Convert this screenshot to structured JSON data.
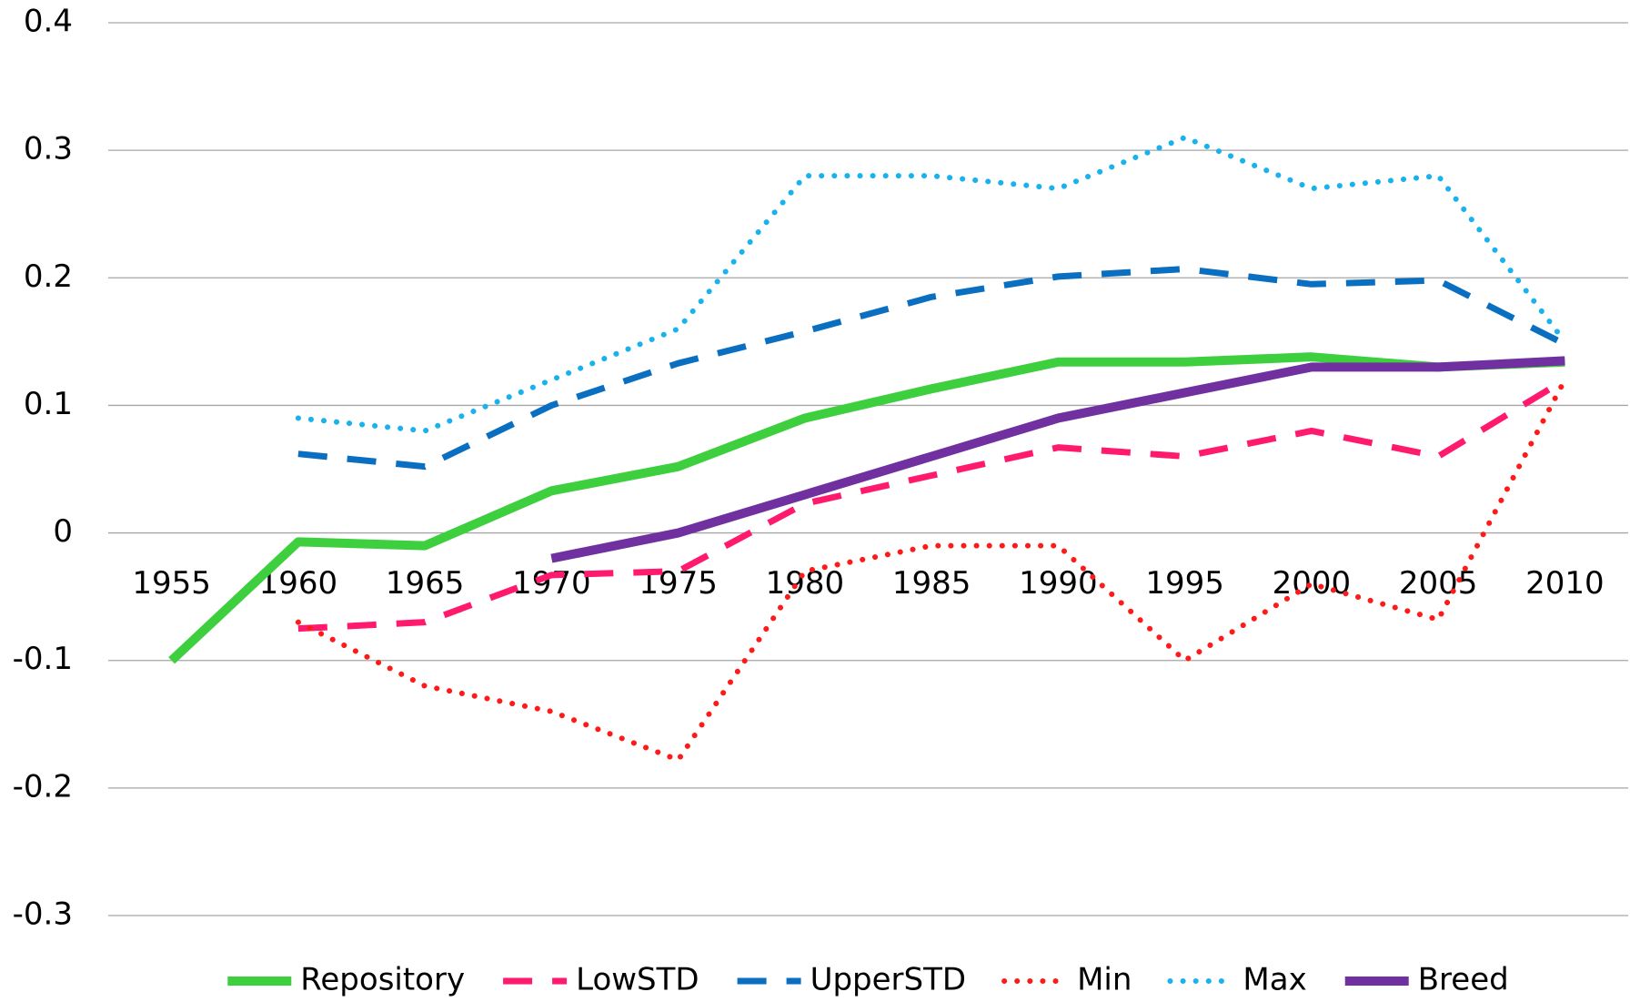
{
  "chart_data": {
    "type": "line",
    "categories": [
      "1955",
      "1960",
      "1965",
      "1970",
      "1975",
      "1980",
      "1985",
      "1990",
      "1995",
      "2000",
      "2005",
      "2010"
    ],
    "series": [
      {
        "name": "Repository",
        "color": "#3ecf3e",
        "style": "solid",
        "values": [
          -0.1,
          -0.007,
          -0.01,
          0.033,
          0.052,
          0.09,
          0.113,
          0.134,
          0.134,
          0.138,
          0.13,
          0.134
        ]
      },
      {
        "name": "LowSTD",
        "color": "#ff1a6e",
        "style": "dashed",
        "values": [
          null,
          -0.075,
          -0.07,
          -0.033,
          -0.03,
          0.023,
          0.045,
          0.067,
          0.06,
          0.08,
          0.06,
          0.12
        ]
      },
      {
        "name": "UpperSTD",
        "color": "#0b6fc1",
        "style": "dashed",
        "values": [
          null,
          0.062,
          0.052,
          0.1,
          0.133,
          0.158,
          0.185,
          0.201,
          0.207,
          0.195,
          0.198,
          0.148
        ]
      },
      {
        "name": "Min",
        "color": "#ff1a1a",
        "style": "dotted",
        "values": [
          null,
          -0.07,
          -0.12,
          -0.14,
          -0.178,
          -0.03,
          -0.01,
          -0.01,
          -0.1,
          -0.04,
          -0.068,
          0.12
        ]
      },
      {
        "name": "Max",
        "color": "#1ab2ec",
        "style": "dotted",
        "values": [
          null,
          0.09,
          0.08,
          0.12,
          0.16,
          0.28,
          0.28,
          0.27,
          0.31,
          0.27,
          0.28,
          0.15
        ]
      },
      {
        "name": "Breed",
        "color": "#7030a0",
        "style": "solid",
        "values": [
          null,
          null,
          null,
          -0.02,
          0.0,
          0.03,
          0.06,
          0.09,
          0.11,
          0.13,
          0.13,
          0.135
        ]
      }
    ],
    "ylim": [
      -0.3,
      0.4
    ],
    "yticks": [
      -0.3,
      -0.2,
      -0.1,
      0,
      0.1,
      0.2,
      0.3,
      0.4
    ],
    "grid": true,
    "legend": "bottom"
  }
}
